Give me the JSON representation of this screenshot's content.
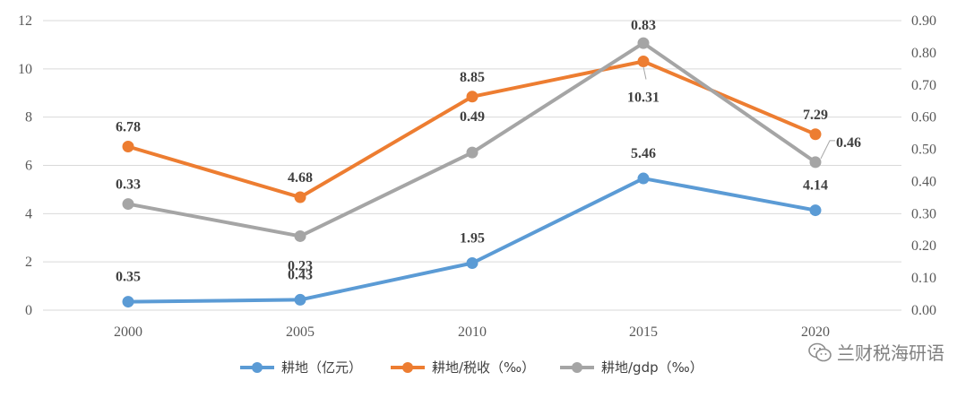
{
  "chart_data": {
    "type": "line",
    "categories": [
      "2000",
      "2005",
      "2010",
      "2015",
      "2020"
    ],
    "y_left": {
      "ticks": [
        "0",
        "2",
        "4",
        "6",
        "8",
        "10",
        "12"
      ],
      "ylim": [
        0,
        12
      ]
    },
    "y_right": {
      "ticks": [
        "0.00",
        "0.10",
        "0.20",
        "0.30",
        "0.40",
        "0.50",
        "0.60",
        "0.70",
        "0.80",
        "0.90"
      ],
      "ylim": [
        0,
        0.9
      ]
    },
    "grid": true,
    "legend_position": "bottom",
    "series": [
      {
        "name": "耕地（亿元）",
        "axis": "left",
        "color": "#5b9bd5",
        "values": [
          0.35,
          0.43,
          1.95,
          5.46,
          4.14
        ],
        "labels": [
          "0.35",
          "0.43",
          "1.95",
          "5.46",
          "4.14"
        ]
      },
      {
        "name": "耕地/税收（‰）",
        "axis": "left",
        "color": "#ed7d31",
        "values": [
          6.78,
          4.68,
          8.85,
          10.31,
          7.29
        ],
        "labels": [
          "6.78",
          "4.68",
          "8.85",
          "10.31",
          "7.29"
        ]
      },
      {
        "name": "耕地/gdp（‰）",
        "axis": "right",
        "color": "#a5a5a5",
        "values": [
          0.33,
          0.23,
          0.49,
          0.83,
          0.46
        ],
        "labels": [
          "0.33",
          "0.23",
          "0.49",
          "0.83",
          "0.46"
        ]
      }
    ]
  },
  "watermark": {
    "text": "兰财税海研语",
    "icon": "wechat-icon"
  }
}
